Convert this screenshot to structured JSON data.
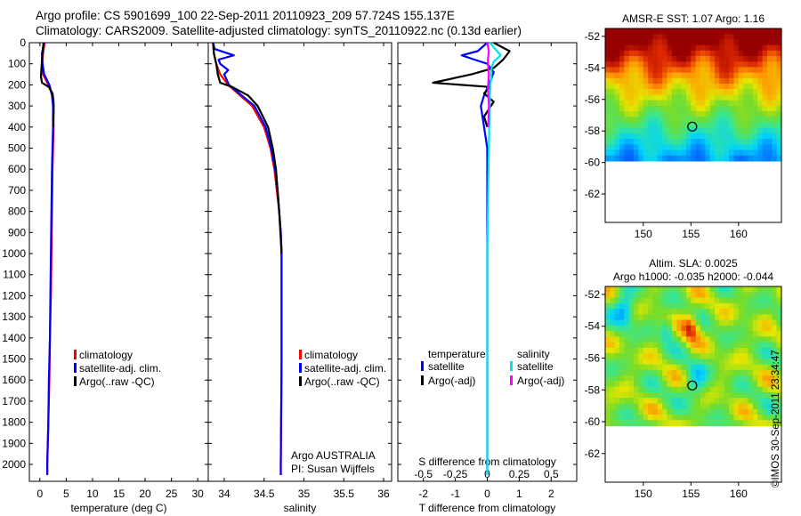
{
  "header": {
    "title_line1": "Argo profile: CS 5901699_100 22-Sep-2011 20110923_209 57.724S 155.137E",
    "title_line2": "Climatology: CARS2009. Satellite-adjusted climatology: synTS_20110922.nc (0.13d earlier)"
  },
  "copyright": "©IMOS 30-Sep-2011 23:34:47",
  "colors": {
    "climatology": "#ff0000",
    "satellite": "#0000ff",
    "argo": "#000000",
    "satellite_s": "#00e5e5",
    "argo_s": "#ff00ff"
  },
  "chart_data": [
    {
      "type": "line",
      "panel": "temperature",
      "xlabel": "temperature (deg C)",
      "ylabel": "",
      "xlim": [
        -2,
        32
      ],
      "ylim": [
        2080,
        0
      ],
      "x_ticks": [
        0,
        5,
        10,
        15,
        20,
        25,
        30
      ],
      "y_ticks": [
        0,
        100,
        200,
        300,
        400,
        500,
        600,
        700,
        800,
        900,
        1000,
        1100,
        1200,
        1300,
        1400,
        1500,
        1600,
        1700,
        1800,
        1900,
        2000
      ],
      "legend": {
        "position": "bottom-right",
        "entries": [
          "climatology",
          "satellite-adj. clim.",
          "Argo(..raw -QC)"
        ]
      },
      "series": [
        {
          "name": "climatology",
          "color": "#ff0000",
          "depth": [
            0,
            50,
            100,
            150,
            200,
            250,
            300,
            400,
            500,
            600,
            800,
            1000,
            1200,
            1400,
            1600,
            1800,
            2000,
            2050
          ],
          "values": [
            0.9,
            0.6,
            0.4,
            0.6,
            1.6,
            2.4,
            2.6,
            2.6,
            2.5,
            2.4,
            2.3,
            2.2,
            2.1,
            1.9,
            1.8,
            1.6,
            1.4,
            1.4
          ]
        },
        {
          "name": "satellite-adj. clim.",
          "color": "#0000ff",
          "depth": [
            0,
            50,
            100,
            150,
            200,
            250,
            300,
            400,
            500,
            600,
            800,
            1000,
            1200,
            1400,
            1600,
            1800,
            2000,
            2050
          ],
          "values": [
            0.8,
            0.4,
            0.5,
            0.8,
            1.8,
            2.3,
            2.5,
            2.5,
            2.4,
            2.3,
            2.2,
            2.1,
            2.0,
            1.9,
            1.7,
            1.6,
            1.4,
            1.4
          ]
        },
        {
          "name": "Argo(..raw -QC)",
          "color": "#000000",
          "depth": [
            0,
            40,
            80,
            120,
            160,
            190,
            210,
            240,
            280,
            320,
            400
          ],
          "values": [
            0.7,
            0.5,
            0.4,
            0.3,
            0.2,
            0.4,
            1.7,
            2.4,
            2.6,
            2.6,
            2.5
          ]
        }
      ]
    },
    {
      "type": "line",
      "panel": "salinity",
      "xlabel": "salinity",
      "ylabel": "",
      "xlim": [
        33.8,
        36.1
      ],
      "ylim": [
        2080,
        0
      ],
      "x_ticks": [
        34,
        34.5,
        35,
        35.5,
        36
      ],
      "legend": {
        "position": "bottom-right",
        "entries": [
          "climatology",
          "satellite-adj. clim.",
          "Argo(..raw -QC)"
        ]
      },
      "annotation": [
        "Argo AUSTRALIA",
        "PI: Susan Wijffels"
      ],
      "series": [
        {
          "name": "climatology",
          "color": "#ff0000",
          "depth": [
            0,
            50,
            100,
            150,
            200,
            250,
            300,
            400,
            500,
            600,
            700,
            800,
            900,
            1000,
            1200,
            1500,
            2000,
            2050
          ],
          "values": [
            33.86,
            33.87,
            33.9,
            33.95,
            34.05,
            34.2,
            34.35,
            34.5,
            34.58,
            34.63,
            34.66,
            34.69,
            34.71,
            34.72,
            34.72,
            34.72,
            34.71,
            34.71
          ]
        },
        {
          "name": "satellite-adj. clim.",
          "color": "#0000ff",
          "depth": [
            0,
            30,
            60,
            80,
            100,
            130,
            150,
            200,
            250,
            300,
            400,
            500,
            600,
            700,
            800,
            900,
            1000,
            1200,
            1500,
            2000,
            2050
          ],
          "values": [
            33.86,
            33.88,
            34.12,
            33.93,
            33.95,
            34.05,
            34.0,
            34.06,
            34.22,
            34.38,
            34.52,
            34.59,
            34.64,
            34.67,
            34.69,
            34.71,
            34.72,
            34.72,
            34.72,
            34.71,
            34.71
          ]
        },
        {
          "name": "Argo(..raw -QC)",
          "color": "#000000",
          "depth": [
            0,
            50,
            100,
            150,
            190,
            210,
            250,
            300,
            400,
            500,
            600,
            800,
            1000
          ],
          "values": [
            33.86,
            33.87,
            33.9,
            33.92,
            33.95,
            34.1,
            34.3,
            34.42,
            34.55,
            34.61,
            34.65,
            34.69,
            34.72
          ]
        }
      ]
    },
    {
      "type": "line",
      "panel": "differences",
      "xlabel": "T difference from climatology",
      "xlabel_top": "S difference from climatology",
      "xlim": [
        -2.8,
        2.8
      ],
      "ylim": [
        2080,
        0
      ],
      "x_ticks_t": [
        -2,
        -1,
        0,
        1,
        2
      ],
      "x_ticks_s": [
        "-0.5",
        "-0.25",
        "0",
        "0.25",
        "0.5"
      ],
      "legend": {
        "position": "bottom",
        "headers": [
          "temperature",
          "salinity"
        ],
        "entries": [
          "satellite",
          "Argo(-adj)",
          "satellite",
          "Argo(-adj)"
        ]
      },
      "series": [
        {
          "name": "temperature satellite",
          "color": "#0000ff",
          "depth": [
            0,
            40,
            60,
            80,
            100,
            140,
            180,
            250,
            300,
            400,
            500,
            700,
            1000,
            1500,
            2000,
            2050
          ],
          "values": [
            0,
            -0.3,
            -0.8,
            -0.4,
            0.0,
            0.2,
            0.1,
            -0.1,
            -0.2,
            -0.1,
            0.0,
            0.0,
            0.0,
            0.0,
            0.0,
            0.0
          ]
        },
        {
          "name": "temperature Argo(-adj)",
          "color": "#000000",
          "depth": [
            0,
            40,
            80,
            120,
            150,
            190,
            210,
            240,
            280,
            350,
            400
          ],
          "values": [
            0.2,
            0.7,
            0.5,
            0.2,
            -0.5,
            -1.7,
            0.1,
            -0.1,
            0.2,
            -0.1,
            0.0
          ]
        },
        {
          "name": "salinity satellite",
          "color": "#00e5e5",
          "depth": [
            0,
            30,
            60,
            90,
            130,
            170,
            200,
            250,
            300,
            400,
            600,
            800,
            1000,
            1500,
            2000,
            2050
          ],
          "values": [
            0.08,
            0.25,
            0.42,
            0.2,
            0.12,
            0.12,
            0.1,
            0.08,
            0.08,
            0.06,
            0.04,
            0.02,
            0.0,
            0.0,
            0.0,
            0.0
          ]
        },
        {
          "name": "salinity Argo(-adj)",
          "color": "#ff00ff",
          "depth": [
            0,
            40,
            80,
            120,
            150,
            190,
            220,
            260,
            300,
            350,
            400
          ],
          "values": [
            0.0,
            0.05,
            0.02,
            0.03,
            0.05,
            0.03,
            0.02,
            0.04,
            0.05,
            0.04,
            0.03
          ]
        }
      ]
    },
    {
      "type": "heatmap",
      "panel": "sst_map",
      "title": "AMSR-E SST: 1.07 Argo: 1.16",
      "xlim": [
        146,
        164.5
      ],
      "ylim": [
        -63.8,
        -51.5
      ],
      "x_ticks": [
        150,
        155,
        160
      ],
      "y_ticks": [
        -52,
        -54,
        -56,
        -58,
        -60,
        -62
      ],
      "marker": [
        155.137,
        -57.724
      ]
    },
    {
      "type": "heatmap",
      "panel": "sla_map",
      "title": "Altim. SLA: 0.0025",
      "subtitle": "Argo h1000: -0.035 h2000: -0.044",
      "xlim": [
        146,
        164.5
      ],
      "ylim": [
        -63.8,
        -51.5
      ],
      "x_ticks": [
        150,
        155,
        160
      ],
      "y_ticks": [
        -52,
        -54,
        -56,
        -58,
        -60,
        -62
      ],
      "marker": [
        155.137,
        -57.724
      ]
    }
  ]
}
